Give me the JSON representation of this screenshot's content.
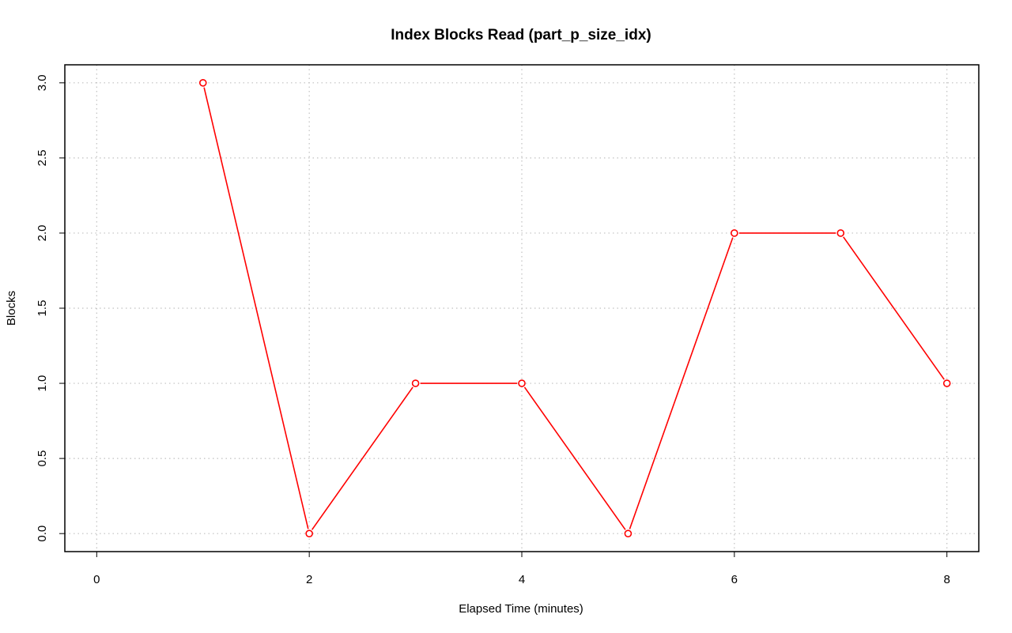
{
  "chart_data": {
    "type": "line",
    "title": "Index Blocks Read (part_p_size_idx)",
    "xlabel": "Elapsed Time (minutes)",
    "ylabel": "Blocks",
    "xlim": [
      -0.3,
      8.3
    ],
    "ylim": [
      -0.12,
      3.12
    ],
    "x_ticks": [
      0,
      2,
      4,
      6,
      8
    ],
    "x_tick_labels": [
      "0",
      "2",
      "4",
      "6",
      "8"
    ],
    "y_ticks": [
      0.0,
      0.5,
      1.0,
      1.5,
      2.0,
      2.5,
      3.0
    ],
    "y_tick_labels": [
      "0.0",
      "0.5",
      "1.0",
      "1.5",
      "2.0",
      "2.5",
      "3.0"
    ],
    "grid": true,
    "series": [
      {
        "color": "#ff0000",
        "marker": "open-circle",
        "x": [
          1,
          2,
          3,
          4,
          5,
          6,
          7,
          8
        ],
        "y": [
          3,
          0,
          1,
          1,
          0,
          2,
          2,
          1
        ]
      }
    ]
  }
}
